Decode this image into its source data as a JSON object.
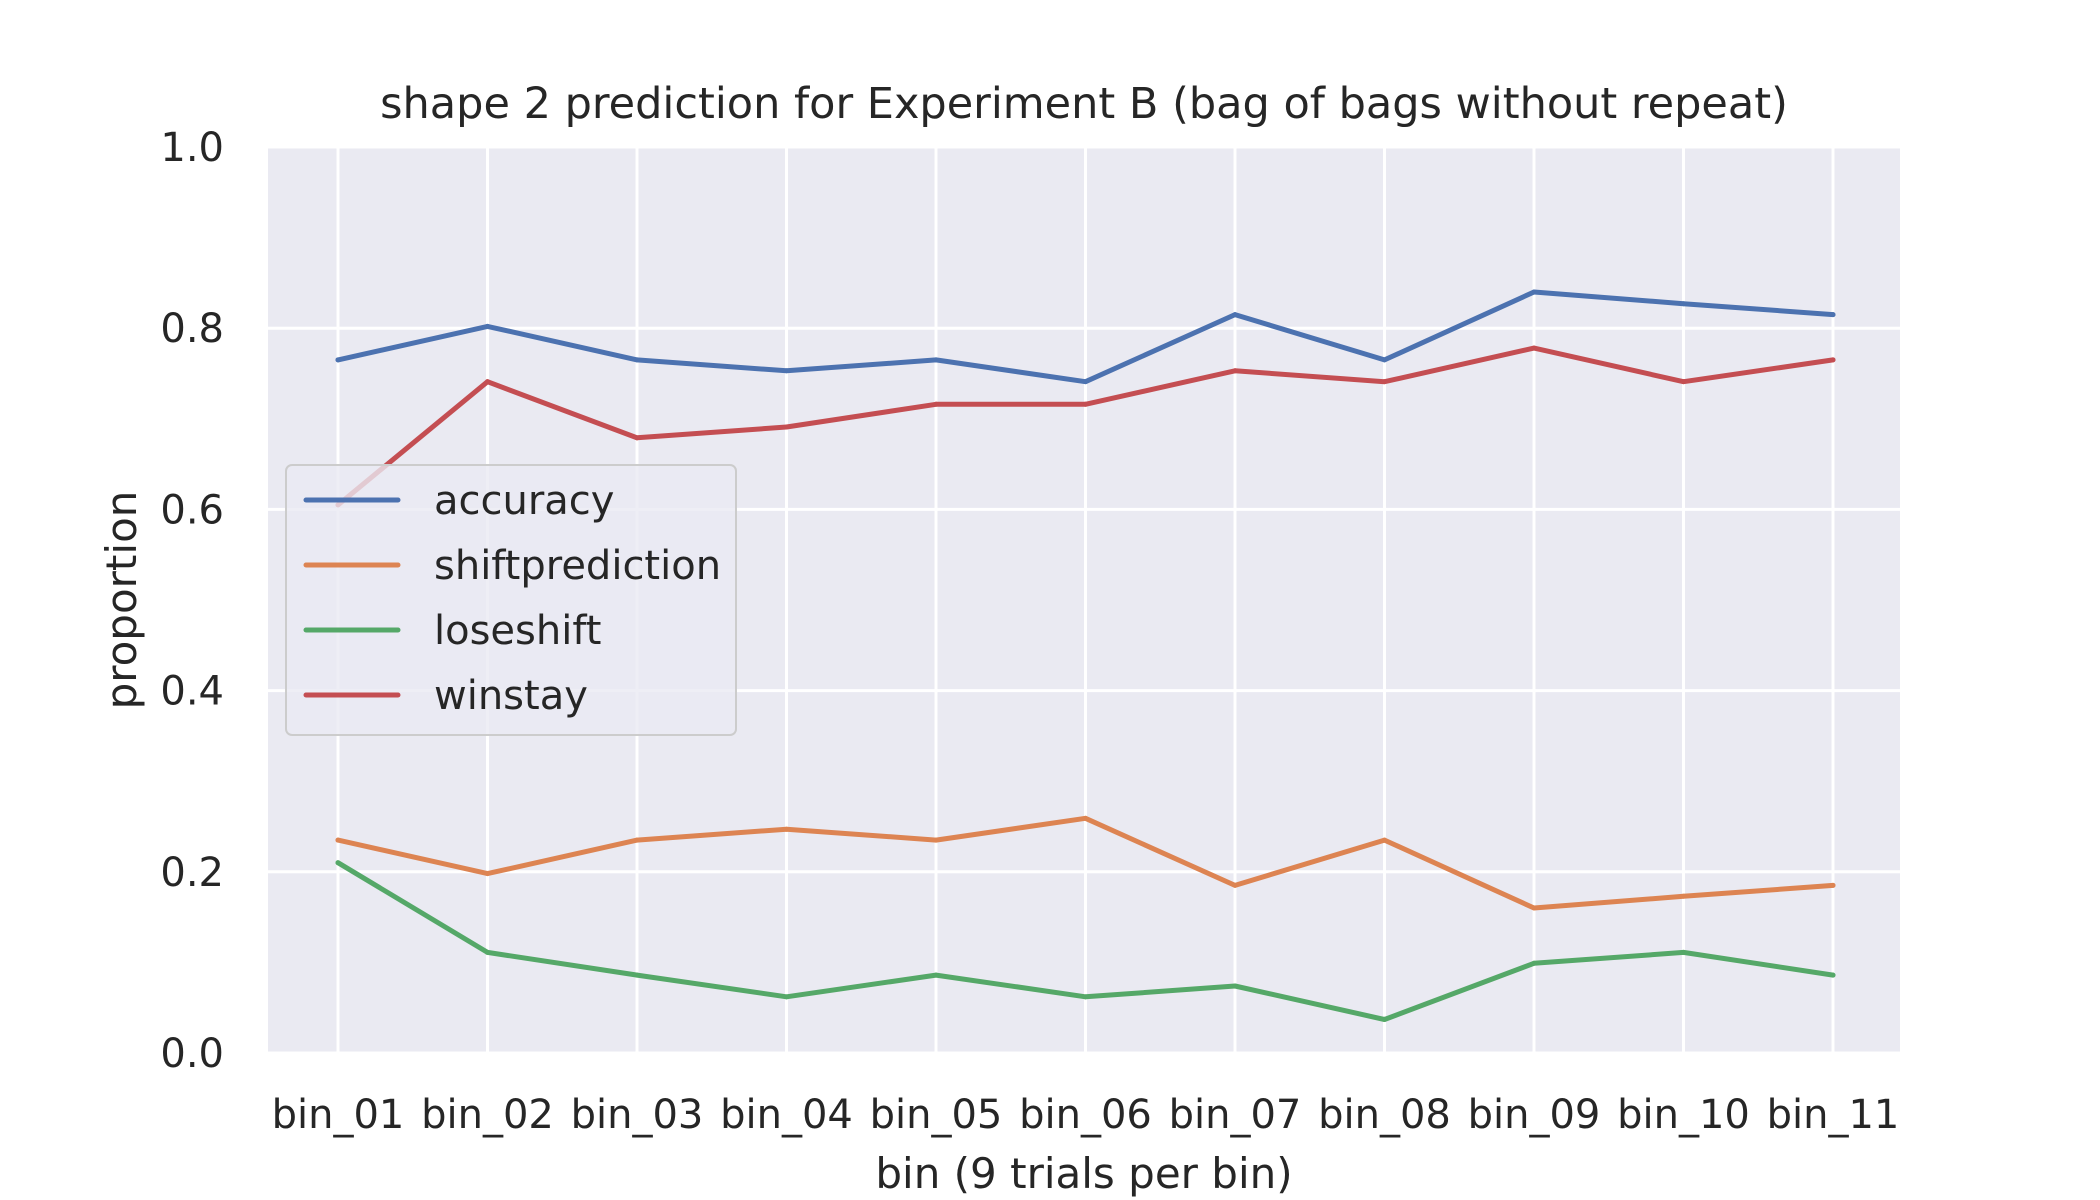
{
  "chart_data": {
    "type": "line",
    "title": "shape 2 prediction for Experiment B (bag of bags without repeat)",
    "xlabel": "bin (9 trials per bin)",
    "ylabel": "proportion",
    "ylim": [
      0.0,
      1.0
    ],
    "yticks": [
      "0.0",
      "0.2",
      "0.4",
      "0.6",
      "0.8",
      "1.0"
    ],
    "grid": true,
    "legend_position": "center-left",
    "categories": [
      "bin_01",
      "bin_02",
      "bin_03",
      "bin_04",
      "bin_05",
      "bin_06",
      "bin_07",
      "bin_08",
      "bin_09",
      "bin_10",
      "bin_11"
    ],
    "series": [
      {
        "name": "accuracy",
        "color": "#4c72b0",
        "values": [
          0.765,
          0.802,
          0.765,
          0.753,
          0.765,
          0.741,
          0.815,
          0.765,
          0.84,
          0.827,
          0.815
        ]
      },
      {
        "name": "shiftprediction",
        "color": "#dd8452",
        "values": [
          0.235,
          0.198,
          0.235,
          0.247,
          0.235,
          0.259,
          0.185,
          0.235,
          0.16,
          0.173,
          0.185
        ]
      },
      {
        "name": "loseshift",
        "color": "#55a868",
        "values": [
          0.21,
          0.111,
          0.086,
          0.062,
          0.086,
          0.062,
          0.074,
          0.037,
          0.099,
          0.111,
          0.086
        ]
      },
      {
        "name": "winstay",
        "color": "#c44e52",
        "values": [
          0.605,
          0.741,
          0.679,
          0.691,
          0.716,
          0.716,
          0.753,
          0.741,
          0.778,
          0.741,
          0.765
        ]
      }
    ]
  }
}
